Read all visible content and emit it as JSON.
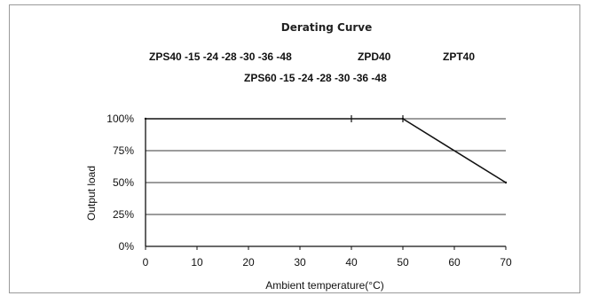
{
  "chart_data": {
    "type": "line",
    "title": "Derating Curve",
    "models": {
      "row1": [
        "ZPS40 -15 -24 -28 -30 -36 -48",
        "ZPD40",
        "ZPT40"
      ],
      "row2": "ZPS60 -15 -24 -28 -30 -36 -48"
    },
    "xlabel": "Ambient temperature(°C)",
    "ylabel": "Output load",
    "xlim": [
      0,
      70
    ],
    "ylim": [
      0,
      100
    ],
    "x_ticks": [
      0,
      10,
      20,
      30,
      40,
      50,
      60,
      70
    ],
    "y_ticks": [
      0,
      25,
      50,
      75,
      100
    ],
    "y_tick_labels": [
      "0%",
      "25%",
      "50%",
      "75%",
      "100%"
    ],
    "grid": "horizontal",
    "series": [
      {
        "x": [
          0,
          50,
          70
        ],
        "y": [
          100,
          100,
          50
        ],
        "color": "#111111"
      }
    ]
  }
}
